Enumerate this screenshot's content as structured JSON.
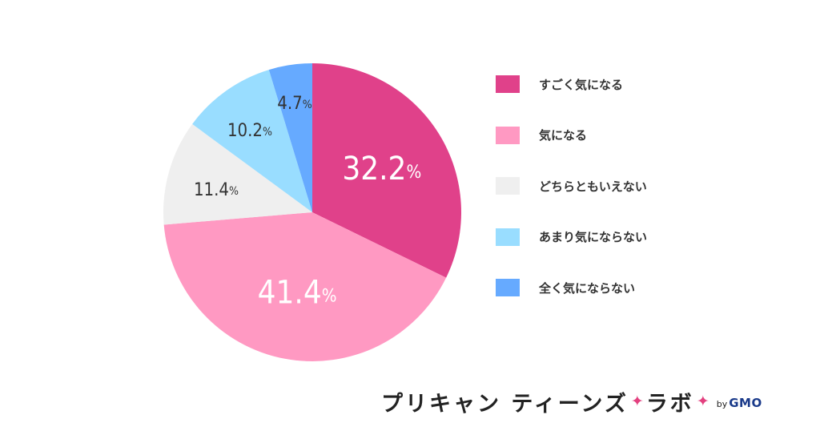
{
  "chart_data": {
    "type": "pie",
    "title": "",
    "start_angle_deg": 0,
    "direction": "clockwise",
    "slices": [
      {
        "label": "すごく気になる",
        "value": 32.2,
        "value_text": "32.2",
        "color": "#e0418a",
        "text_color": "#ffffff",
        "size": "big"
      },
      {
        "label": "気になる",
        "value": 41.4,
        "value_text": "41.4",
        "color": "#ff99c2",
        "text_color": "#ffffff",
        "size": "big"
      },
      {
        "label": "どちらともいえない",
        "value": 11.4,
        "value_text": "11.4",
        "color": "#efefef",
        "text_color": "#333333",
        "size": "small"
      },
      {
        "label": "あまり気にならない",
        "value": 10.2,
        "value_text": "10.2",
        "color": "#99ddff",
        "text_color": "#333333",
        "size": "small"
      },
      {
        "label": "全く気にならない",
        "value": 4.7,
        "value_text": "4.7",
        "color": "#66aaff",
        "text_color": "#333333",
        "size": "small"
      }
    ],
    "unit": "%",
    "legend_position": "right"
  },
  "brand": {
    "name_part1": "プリキャン ティーンズ",
    "name_part2": "ラボ",
    "sparkle": "✦",
    "by": "by",
    "company": "GMO"
  }
}
